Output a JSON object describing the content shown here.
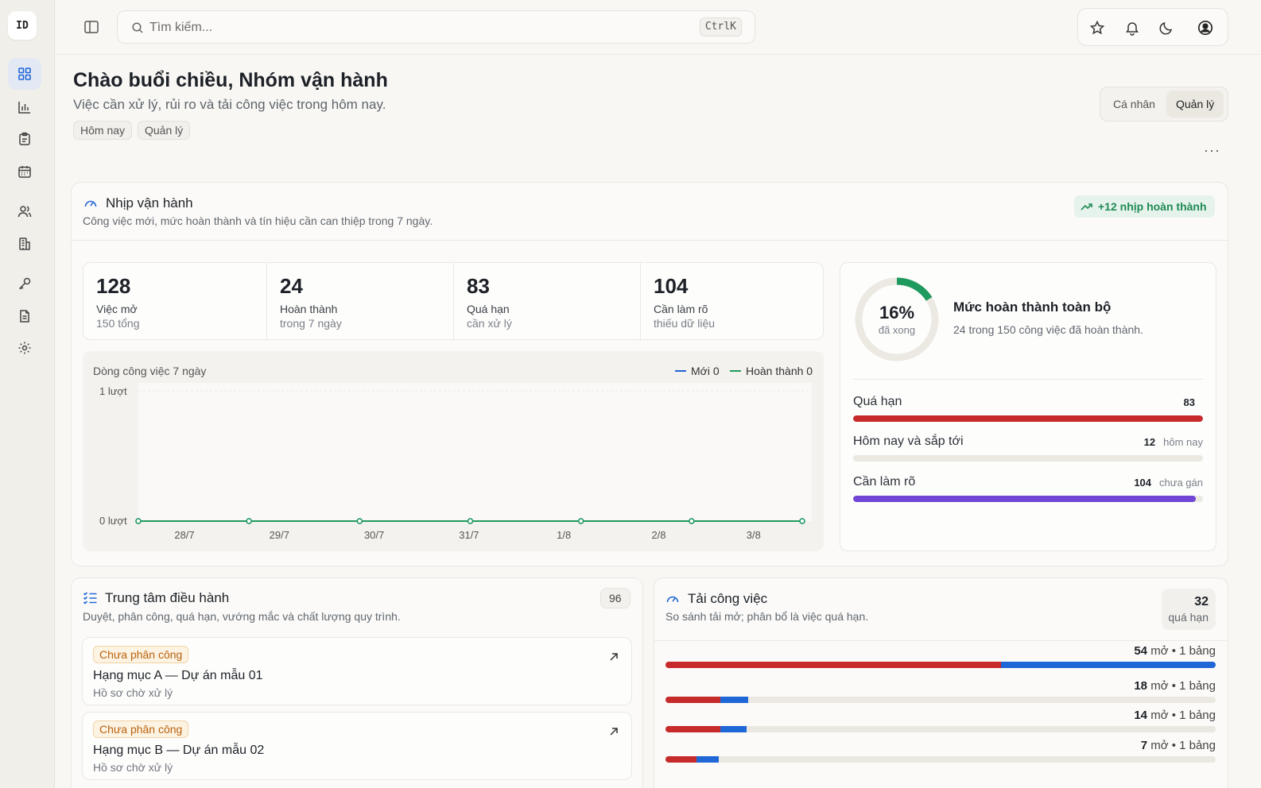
{
  "sidebar": {
    "logo": "ID",
    "items": [
      {
        "name": "dashboard-icon",
        "active": true
      },
      {
        "name": "bar-chart-icon"
      },
      {
        "name": "clipboard-icon"
      },
      {
        "name": "calendar-icon"
      },
      {
        "name": "users-icon"
      },
      {
        "name": "building-icon"
      },
      {
        "name": "key-icon"
      },
      {
        "name": "document-icon"
      },
      {
        "name": "gear-icon"
      }
    ]
  },
  "topbar": {
    "search_placeholder": "Tìm kiếm...",
    "search_shortcut": "CtrlK"
  },
  "header": {
    "title": "Chào buổi chiều, Nhóm vận hành",
    "subtitle": "Việc cần xử lý, rủi ro và tải công việc trong hôm nay.",
    "chips": [
      "Hôm nay",
      "Quản lý"
    ],
    "toggle": {
      "options": [
        "Cá nhân",
        "Quản lý"
      ],
      "selected": "Quản lý"
    },
    "more": "···"
  },
  "pulse": {
    "title": "Nhịp vận hành",
    "subtitle": "Công việc mới, mức hoàn thành và tín hiệu cần can thiệp trong 7 ngày.",
    "badge": "+12 nhịp hoàn thành",
    "kpis": [
      {
        "value": "128",
        "label": "Việc mở",
        "sub": "150 tổng"
      },
      {
        "value": "24",
        "label": "Hoàn thành",
        "sub": "trong 7 ngày"
      },
      {
        "value": "83",
        "label": "Quá hạn",
        "sub": "cần xử lý"
      },
      {
        "value": "104",
        "label": "Cần làm rõ",
        "sub": "thiếu dữ liệu"
      }
    ],
    "chart_title": "Dòng công việc 7 ngày",
    "legend_new": "Mới 0",
    "legend_done": "Hoàn thành 0",
    "colors": {
      "new": "#1f66d6",
      "done": "#1f9a5e"
    }
  },
  "chart_data": {
    "type": "line",
    "title": "Dòng công việc 7 ngày",
    "categories": [
      "28/7",
      "29/7",
      "30/7",
      "31/7",
      "1/8",
      "2/8",
      "3/8"
    ],
    "y_tick_labels": [
      "1 lượt",
      "0 lượt"
    ],
    "ylim": [
      0,
      1
    ],
    "legend_position": "top-right",
    "series": [
      {
        "name": "Mới 0",
        "values": [
          0,
          0,
          0,
          0,
          0,
          0,
          0
        ],
        "color": "#1f66d6"
      },
      {
        "name": "Hoàn thành 0",
        "values": [
          0,
          0,
          0,
          0,
          0,
          0,
          0
        ],
        "color": "#1f9a5e"
      }
    ]
  },
  "completion": {
    "percent": "16%",
    "percent_value": 16,
    "percent_label": "đã xong",
    "title": "Mức hoàn thành toàn bộ",
    "subtitle": "24 trong 150 công việc đã hoàn thành.",
    "rows": [
      {
        "label": "Quá hạn",
        "count": "83",
        "suffix": "",
        "fraction": 1.0,
        "color": "#c62a2a"
      },
      {
        "label": "Hôm nay và sắp tới",
        "count": "12",
        "suffix": "hôm nay",
        "fraction": 0.0,
        "color": "#1f66d6"
      },
      {
        "label": "Cần làm rõ",
        "count": "104",
        "suffix": "chưa gán",
        "fraction": 0.98,
        "color": "#7145d6"
      }
    ]
  },
  "ops_center": {
    "title": "Trung tâm điều hành",
    "subtitle": "Duyệt, phân công, quá hạn, vướng mắc và chất lượng quy trình.",
    "count": "96",
    "items": [
      {
        "tag": "Chưa phân công",
        "title": "Hạng mục A — Dự án mẫu 01",
        "sub": "Hồ sơ chờ xử lý"
      },
      {
        "tag": "Chưa phân công",
        "title": "Hạng mục B — Dự án mẫu 02",
        "sub": "Hồ sơ chờ xử lý"
      }
    ]
  },
  "workload": {
    "title": "Tải công việc",
    "subtitle": "So sánh tải mở; phân bổ là việc quá hạn.",
    "overdue_count": "32",
    "overdue_label": "quá hạn",
    "rows": [
      {
        "open": "54",
        "label": " mở • 1 bảng",
        "overdue_fraction": 0.61,
        "open_fraction": 1.0
      },
      {
        "open": "18",
        "label": " mở • 1 bảng",
        "overdue_fraction": 0.1,
        "open_fraction": 0.15
      },
      {
        "open": "14",
        "label": " mở • 1 bảng",
        "overdue_fraction": 0.1,
        "open_fraction": 0.147
      },
      {
        "open": "7",
        "label": " mở • 1 bảng",
        "overdue_fraction": 0.056,
        "open_fraction": 0.097
      }
    ]
  }
}
